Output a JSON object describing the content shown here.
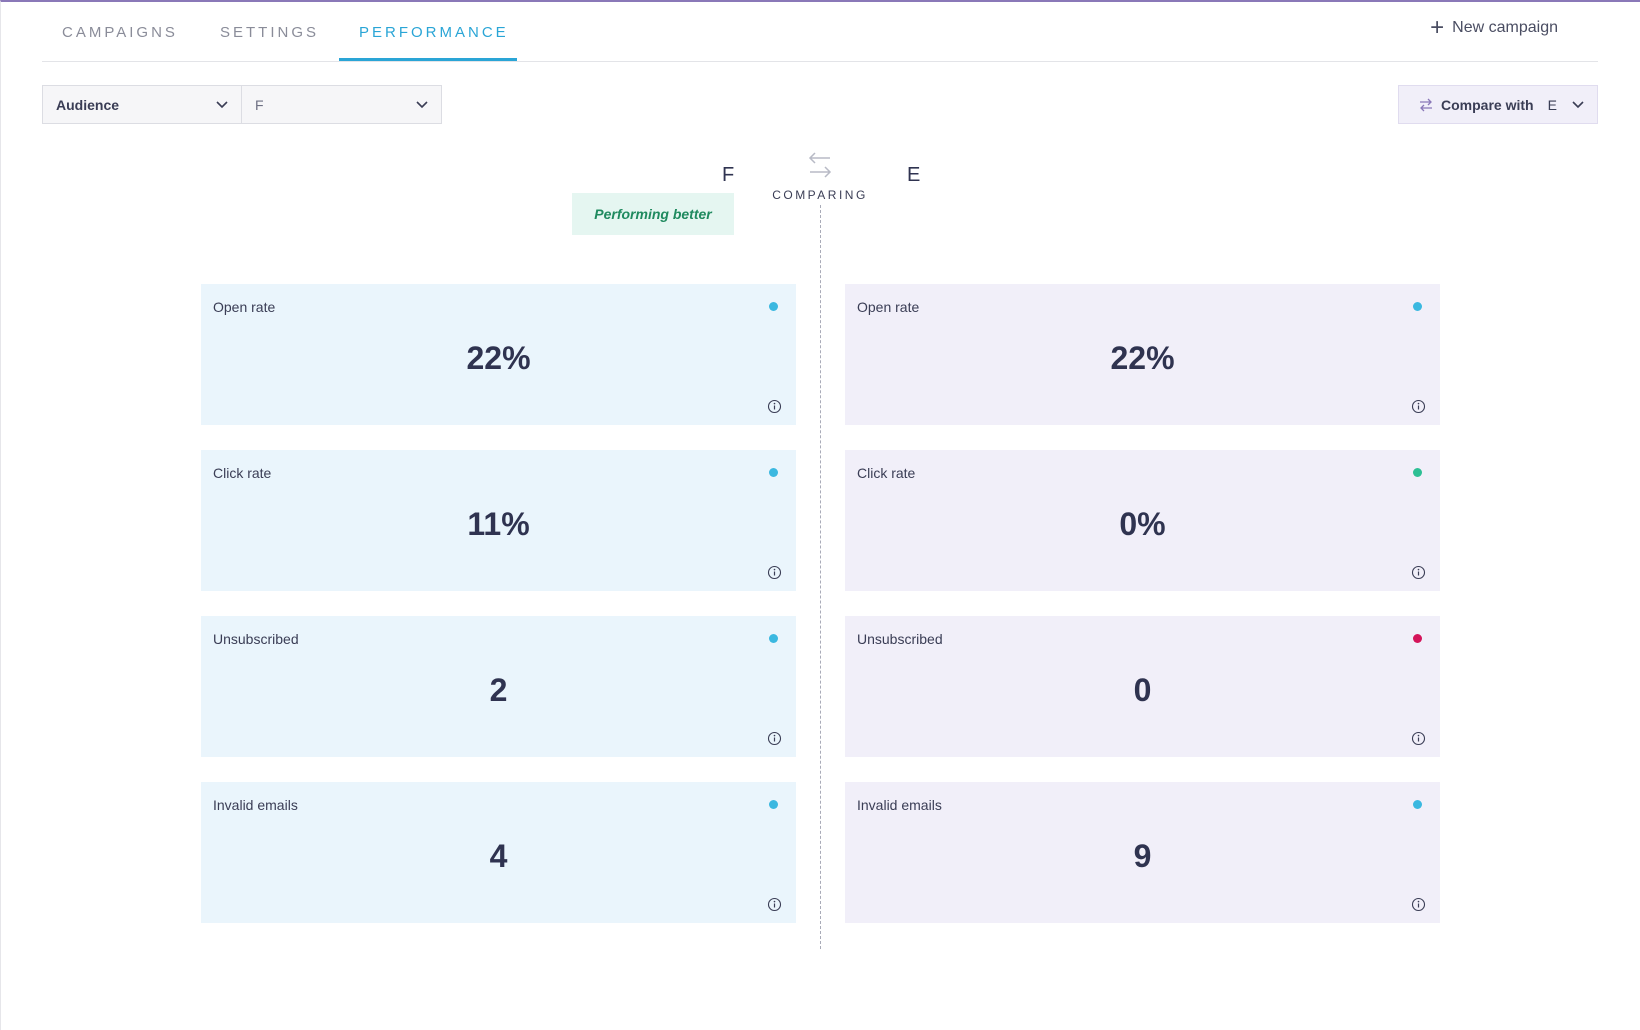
{
  "tabs": [
    {
      "label": "CAMPAIGNS"
    },
    {
      "label": "SETTINGS"
    },
    {
      "label": "PERFORMANCE",
      "active": true
    }
  ],
  "new_campaign_label": "New campaign",
  "filters": {
    "audience_label": "Audience",
    "audience_value": "F",
    "compare_label": "Compare with",
    "compare_value": "E"
  },
  "comparison": {
    "left_name": "F",
    "right_name": "E",
    "comparing_label": "COMPARING",
    "badge": "Performing better"
  },
  "colors": {
    "accent": "#2aa5d6",
    "left_card_bg": "#eaf5fc",
    "right_card_bg": "#f1eff9",
    "badge_bg": "#e5f6f1",
    "badge_text": "#1f8a5f",
    "dot_blue": "#3bb8e0",
    "dot_green": "#2dbf94",
    "dot_red": "#d4145a"
  },
  "left_metrics": [
    {
      "label": "Open rate",
      "value": "22%",
      "dot": "#3bb8e0"
    },
    {
      "label": "Click rate",
      "value": "11%",
      "dot": "#3bb8e0"
    },
    {
      "label": "Unsubscribed",
      "value": "2",
      "dot": "#3bb8e0"
    },
    {
      "label": "Invalid emails",
      "value": "4",
      "dot": "#3bb8e0"
    }
  ],
  "right_metrics": [
    {
      "label": "Open rate",
      "value": "22%",
      "dot": "#3bb8e0"
    },
    {
      "label": "Click rate",
      "value": "0%",
      "dot": "#2dbf94"
    },
    {
      "label": "Unsubscribed",
      "value": "0",
      "dot": "#d4145a"
    },
    {
      "label": "Invalid emails",
      "value": "9",
      "dot": "#3bb8e0"
    }
  ]
}
